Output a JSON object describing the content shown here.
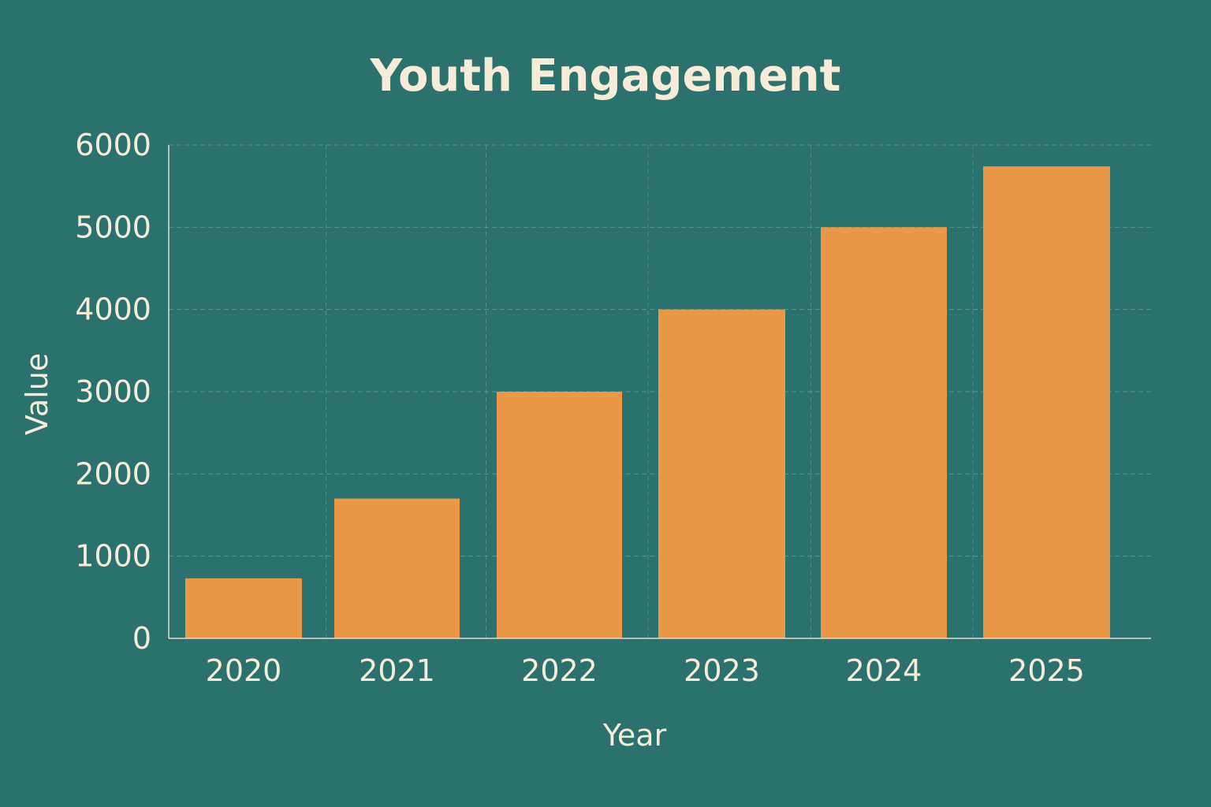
{
  "colors": {
    "background": "#2b716d",
    "bar": "#ea9847",
    "text": "#f6ecd8",
    "grid": "#6aa09b",
    "axis": "#e6ddc9"
  },
  "chart_data": {
    "type": "bar",
    "title": "Youth Engagement",
    "xlabel": "Year",
    "ylabel": "Value",
    "categories": [
      "2020",
      "2021",
      "2022",
      "2023",
      "2024",
      "2025"
    ],
    "values": [
      730,
      1700,
      3000,
      4000,
      5000,
      5740
    ],
    "ylim": [
      0,
      6000
    ],
    "yticks": [
      0,
      1000,
      2000,
      3000,
      4000,
      5000,
      6000
    ],
    "grid": true,
    "legend": "none"
  }
}
